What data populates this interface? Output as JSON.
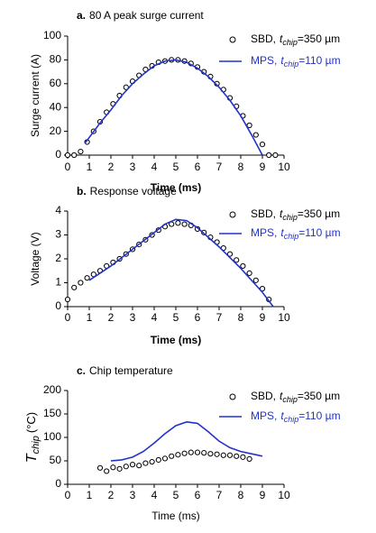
{
  "chart_data": [
    {
      "type": "line",
      "panel": "a.",
      "title": "80 A peak surge current",
      "xlabel": "Time (ms)",
      "ylabel": {
        "main": "Surge current (A)"
      },
      "xlim": [
        0,
        10
      ],
      "xticks": [
        0,
        1,
        2,
        3,
        4,
        5,
        6,
        7,
        8,
        9,
        10
      ],
      "ylim": [
        0,
        100
      ],
      "yticks": [
        0,
        20,
        40,
        60,
        80,
        100
      ],
      "series": [
        {
          "name": "SBD,",
          "param": {
            "symbol": "t",
            "sub": "chip",
            "value": "=350 µm"
          },
          "style": "markers",
          "color": "#000000",
          "x": [
            0,
            0.3,
            0.6,
            0.9,
            1.2,
            1.5,
            1.8,
            2.1,
            2.4,
            2.7,
            3.0,
            3.3,
            3.6,
            3.9,
            4.2,
            4.5,
            4.8,
            5.1,
            5.4,
            5.7,
            6.0,
            6.3,
            6.6,
            6.9,
            7.2,
            7.5,
            7.8,
            8.1,
            8.4,
            8.7,
            9.0,
            9.3,
            9.6
          ],
          "values": [
            0,
            0,
            3,
            11,
            20,
            28,
            36,
            43,
            50,
            57,
            62,
            67,
            72,
            75,
            78,
            79,
            80,
            80,
            79,
            77,
            74,
            70,
            66,
            60,
            55,
            48,
            41,
            33,
            25,
            17,
            9,
            0,
            0
          ]
        },
        {
          "name": "MPS,",
          "param": {
            "symbol": "t",
            "sub": "chip",
            "value": "=110 µm"
          },
          "style": "line",
          "color": "#2233cc",
          "x": [
            0.8,
            1.5,
            2,
            2.5,
            3,
            3.5,
            4,
            4.5,
            5,
            5.5,
            6,
            6.5,
            7,
            7.5,
            8,
            8.5,
            9
          ],
          "values": [
            10,
            27,
            38,
            50,
            60,
            68,
            75,
            79,
            80,
            78,
            73,
            66,
            57,
            46,
            33,
            17,
            0
          ]
        }
      ]
    },
    {
      "type": "line",
      "panel": "b.",
      "title": "Response voltage",
      "xlabel": "Time (ms)",
      "ylabel": {
        "main": "Voltage (V)"
      },
      "xlim": [
        0,
        10
      ],
      "xticks": [
        0,
        1,
        2,
        3,
        4,
        5,
        6,
        7,
        8,
        9,
        10
      ],
      "ylim": [
        0,
        4
      ],
      "yticks": [
        0,
        1,
        2,
        3,
        4
      ],
      "series": [
        {
          "name": "SBD,",
          "param": {
            "symbol": "t",
            "sub": "chip",
            "value": "=350 µm"
          },
          "style": "markers",
          "color": "#000000",
          "x": [
            0,
            0.3,
            0.6,
            0.9,
            1.2,
            1.5,
            1.8,
            2.1,
            2.4,
            2.7,
            3.0,
            3.3,
            3.6,
            3.9,
            4.2,
            4.5,
            4.8,
            5.1,
            5.4,
            5.7,
            6.0,
            6.3,
            6.6,
            6.9,
            7.2,
            7.5,
            7.8,
            8.1,
            8.4,
            8.7,
            9.0,
            9.3
          ],
          "values": [
            0.3,
            0.8,
            1.0,
            1.2,
            1.35,
            1.5,
            1.7,
            1.85,
            2.0,
            2.2,
            2.4,
            2.6,
            2.8,
            3.0,
            3.2,
            3.35,
            3.45,
            3.5,
            3.45,
            3.4,
            3.25,
            3.1,
            2.9,
            2.7,
            2.45,
            2.2,
            1.95,
            1.7,
            1.4,
            1.1,
            0.75,
            0.3
          ]
        },
        {
          "name": "MPS,",
          "param": {
            "symbol": "t",
            "sub": "chip",
            "value": "=110 µm"
          },
          "style": "line",
          "color": "#2233cc",
          "x": [
            1,
            2,
            3,
            4,
            4.5,
            5,
            5.5,
            6,
            7,
            8,
            9,
            9.5
          ],
          "values": [
            1.1,
            1.7,
            2.4,
            3.1,
            3.45,
            3.65,
            3.6,
            3.3,
            2.5,
            1.6,
            0.6,
            0
          ]
        }
      ]
    },
    {
      "type": "line",
      "panel": "c.",
      "title": "Chip temperature",
      "xlabel": "Time (ms)",
      "ylabel": {
        "main": "T",
        "sub": "chip",
        "unit": "(°C)"
      },
      "xlim": [
        0,
        10
      ],
      "xticks": [
        0,
        1,
        2,
        3,
        4,
        5,
        6,
        7,
        8,
        9,
        10
      ],
      "ylim": [
        0,
        200
      ],
      "yticks": [
        0,
        50,
        100,
        150,
        200
      ],
      "series": [
        {
          "name": "SBD,",
          "param": {
            "symbol": "t",
            "sub": "chip",
            "value": "=350 µm"
          },
          "style": "markers",
          "color": "#000000",
          "x": [
            1.5,
            1.8,
            2.1,
            2.4,
            2.7,
            3.0,
            3.3,
            3.6,
            3.9,
            4.2,
            4.5,
            4.8,
            5.1,
            5.4,
            5.7,
            6.0,
            6.3,
            6.6,
            6.9,
            7.2,
            7.5,
            7.8,
            8.1,
            8.4
          ],
          "values": [
            35,
            28,
            36,
            33,
            38,
            42,
            40,
            45,
            48,
            52,
            55,
            60,
            63,
            66,
            68,
            68,
            67,
            65,
            64,
            62,
            62,
            60,
            58,
            54
          ]
        },
        {
          "name": "MPS,",
          "param": {
            "symbol": "t",
            "sub": "chip",
            "value": "=110 µm"
          },
          "style": "line",
          "color": "#2233cc",
          "x": [
            2,
            2.5,
            3,
            3.5,
            4,
            4.5,
            5,
            5.5,
            6,
            6.5,
            7,
            7.5,
            8,
            8.5,
            9
          ],
          "values": [
            50,
            52,
            58,
            70,
            88,
            108,
            125,
            133,
            130,
            112,
            92,
            78,
            70,
            65,
            60
          ]
        }
      ]
    }
  ]
}
